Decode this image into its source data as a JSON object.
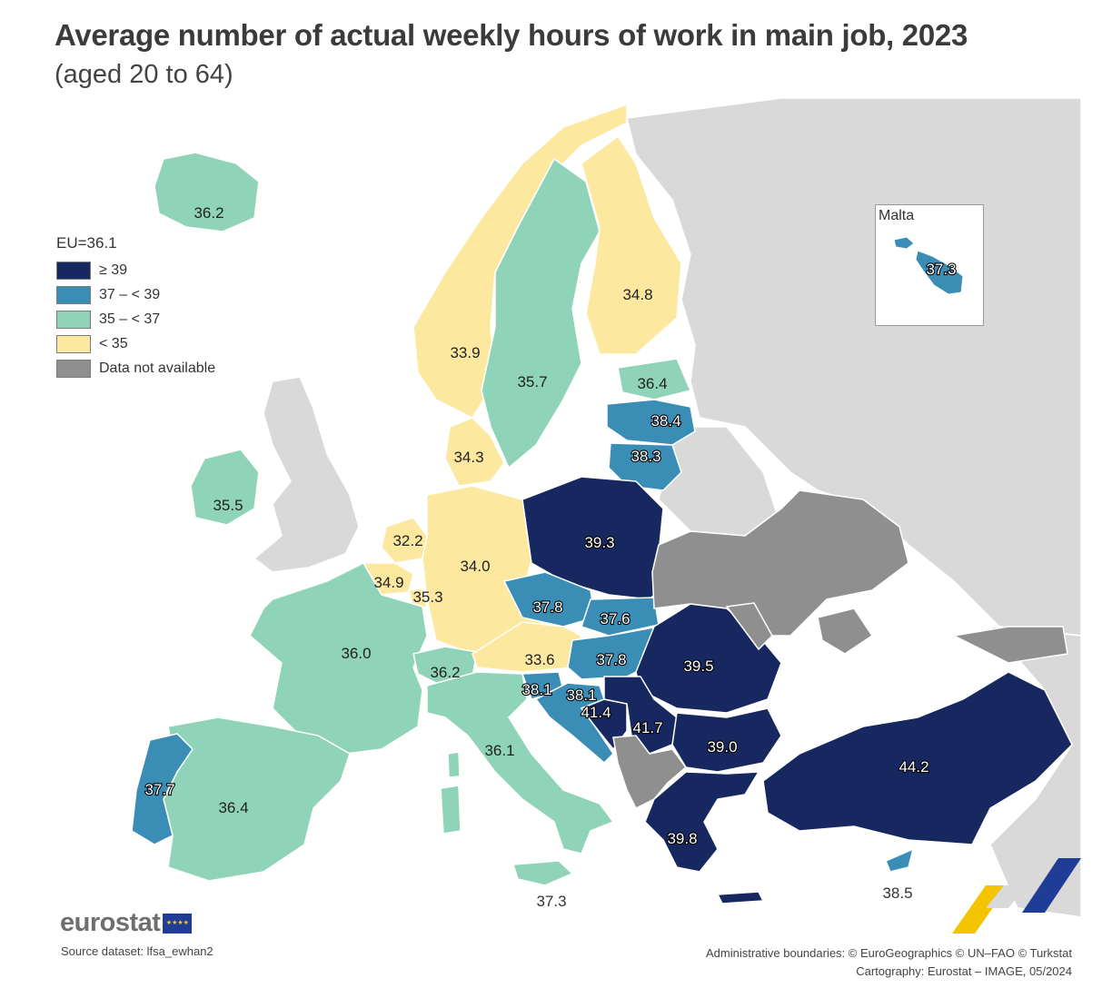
{
  "title": "Average number of actual weekly hours of work in main job, 2023",
  "subtitle": "(aged 20 to 64)",
  "legend": {
    "title": "EU=36.1",
    "items": [
      {
        "label": "≥ 39",
        "color": "#17275f"
      },
      {
        "label": "37 – < 39",
        "color": "#3a8db5"
      },
      {
        "label": "35 – < 37",
        "color": "#8fd3b8"
      },
      {
        "label": "< 35",
        "color": "#fde8a0"
      },
      {
        "label": "Data not available",
        "color": "#8f8f8f"
      }
    ]
  },
  "inset": {
    "label": "Malta",
    "value": "37.3"
  },
  "countries": [
    {
      "name": "Iceland",
      "value": "36.2"
    },
    {
      "name": "Norway",
      "value": "33.9"
    },
    {
      "name": "Sweden",
      "value": "35.7"
    },
    {
      "name": "Finland",
      "value": "34.8"
    },
    {
      "name": "Estonia",
      "value": "36.4"
    },
    {
      "name": "Latvia",
      "value": "38.4"
    },
    {
      "name": "Lithuania",
      "value": "38.3"
    },
    {
      "name": "Denmark",
      "value": "34.3"
    },
    {
      "name": "Ireland",
      "value": "35.5"
    },
    {
      "name": "Netherlands",
      "value": "32.2"
    },
    {
      "name": "Belgium",
      "value": "34.9"
    },
    {
      "name": "Luxembourg",
      "value": "35.3"
    },
    {
      "name": "Germany",
      "value": "34.0"
    },
    {
      "name": "Poland",
      "value": "39.3"
    },
    {
      "name": "Czechia",
      "value": "37.8"
    },
    {
      "name": "Slovakia",
      "value": "37.6"
    },
    {
      "name": "Austria",
      "value": "33.6"
    },
    {
      "name": "Hungary",
      "value": "37.8"
    },
    {
      "name": "Romania",
      "value": "39.5"
    },
    {
      "name": "France",
      "value": "36.0"
    },
    {
      "name": "Switzerland",
      "value": "36.2"
    },
    {
      "name": "Slovenia",
      "value": "38.1"
    },
    {
      "name": "Croatia",
      "value": "38.1"
    },
    {
      "name": "Bosnia and Herzegovina",
      "value": "41.4"
    },
    {
      "name": "Serbia",
      "value": "41.7"
    },
    {
      "name": "Bulgaria",
      "value": "39.0"
    },
    {
      "name": "Italy",
      "value": "36.1"
    },
    {
      "name": "Türkiye",
      "value": "44.2"
    },
    {
      "name": "Portugal",
      "value": "37.7"
    },
    {
      "name": "Spain",
      "value": "36.4"
    },
    {
      "name": "Greece",
      "value": "39.8"
    },
    {
      "name": "Cyprus",
      "value": "38.5"
    },
    {
      "name": "Malta",
      "value": "37.3"
    }
  ],
  "logo": "eurostat",
  "source": "Source dataset: lfsa_ewhan2",
  "credits_line1": "Administrative boundaries: © EuroGeographics © UN–FAO © Turkstat",
  "credits_line2": "Cartography: Eurostat – IMAGE, 05/2024"
}
